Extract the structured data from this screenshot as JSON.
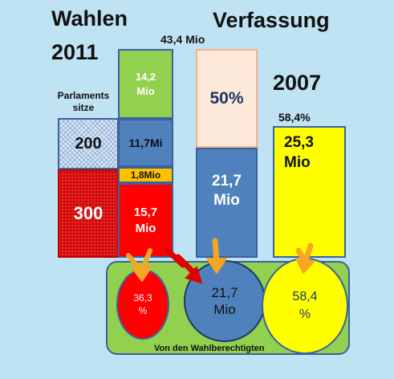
{
  "titles": {
    "wahlen": "Wahlen",
    "year_2011": "2011",
    "verfassung": "Verfassung",
    "year_2007": "2007"
  },
  "parliament": {
    "label": "Parlaments sitze",
    "seats_top": "200",
    "seats_bottom": "300"
  },
  "election_2011": {
    "total": "43,4 Mio",
    "green_value": "14,2 Mio",
    "blue_value": "11,7Mi",
    "orange_value": "1,8Mio",
    "red_value": "15,7 Mio"
  },
  "constitution": {
    "top_value": "50%",
    "bottom_value": "21,7 Mio"
  },
  "year_2007": {
    "percent": "58,4%",
    "value": "25,3 Mio"
  },
  "circles": {
    "red": "36,3 %",
    "blue": "21,7 Mio",
    "yellow": "58,4 %"
  },
  "footer_label": "Von den Wahlberechtigten",
  "colors": {
    "background": "#bfe3f3",
    "green": "#92d050",
    "blue": "#4f81bd",
    "orange": "#ffc000",
    "red": "#ff0000",
    "peach": "#fde9d9",
    "yellow": "#ffff00",
    "arrow_orange": "#f6a623",
    "arrow_red": "#e00000"
  }
}
